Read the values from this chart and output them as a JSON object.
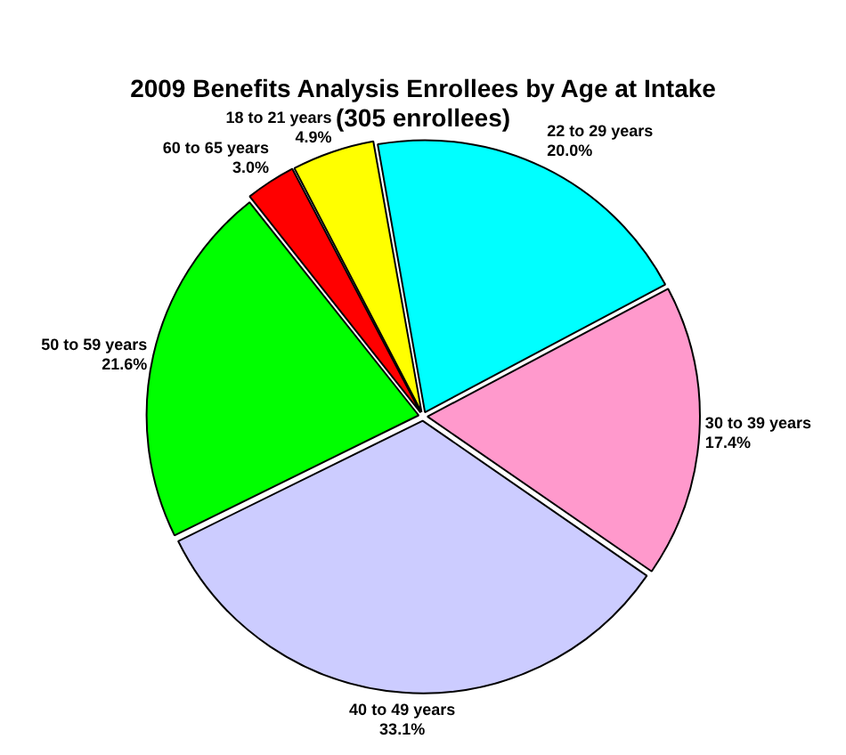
{
  "chart_data": {
    "type": "pie",
    "title": "2009 Benefits Analysis Enrollees by Age at Intake",
    "subtitle": "(305 enrollees)",
    "categories": [
      "22 to 29 years",
      "30 to 39 years",
      "40 to 49 years",
      "50 to 59 years",
      "60 to 65 years",
      "18 to 21 years"
    ],
    "values": [
      20.0,
      17.4,
      33.1,
      21.6,
      3.0,
      4.9
    ],
    "value_labels": [
      "20.0%",
      "17.4%",
      "33.1%",
      "21.6%",
      "3.0%",
      "4.9%"
    ],
    "colors": [
      "#00ffff",
      "#ff99cc",
      "#ccccff",
      "#00ff00",
      "#ff0000",
      "#ffff00"
    ],
    "legend": false
  }
}
